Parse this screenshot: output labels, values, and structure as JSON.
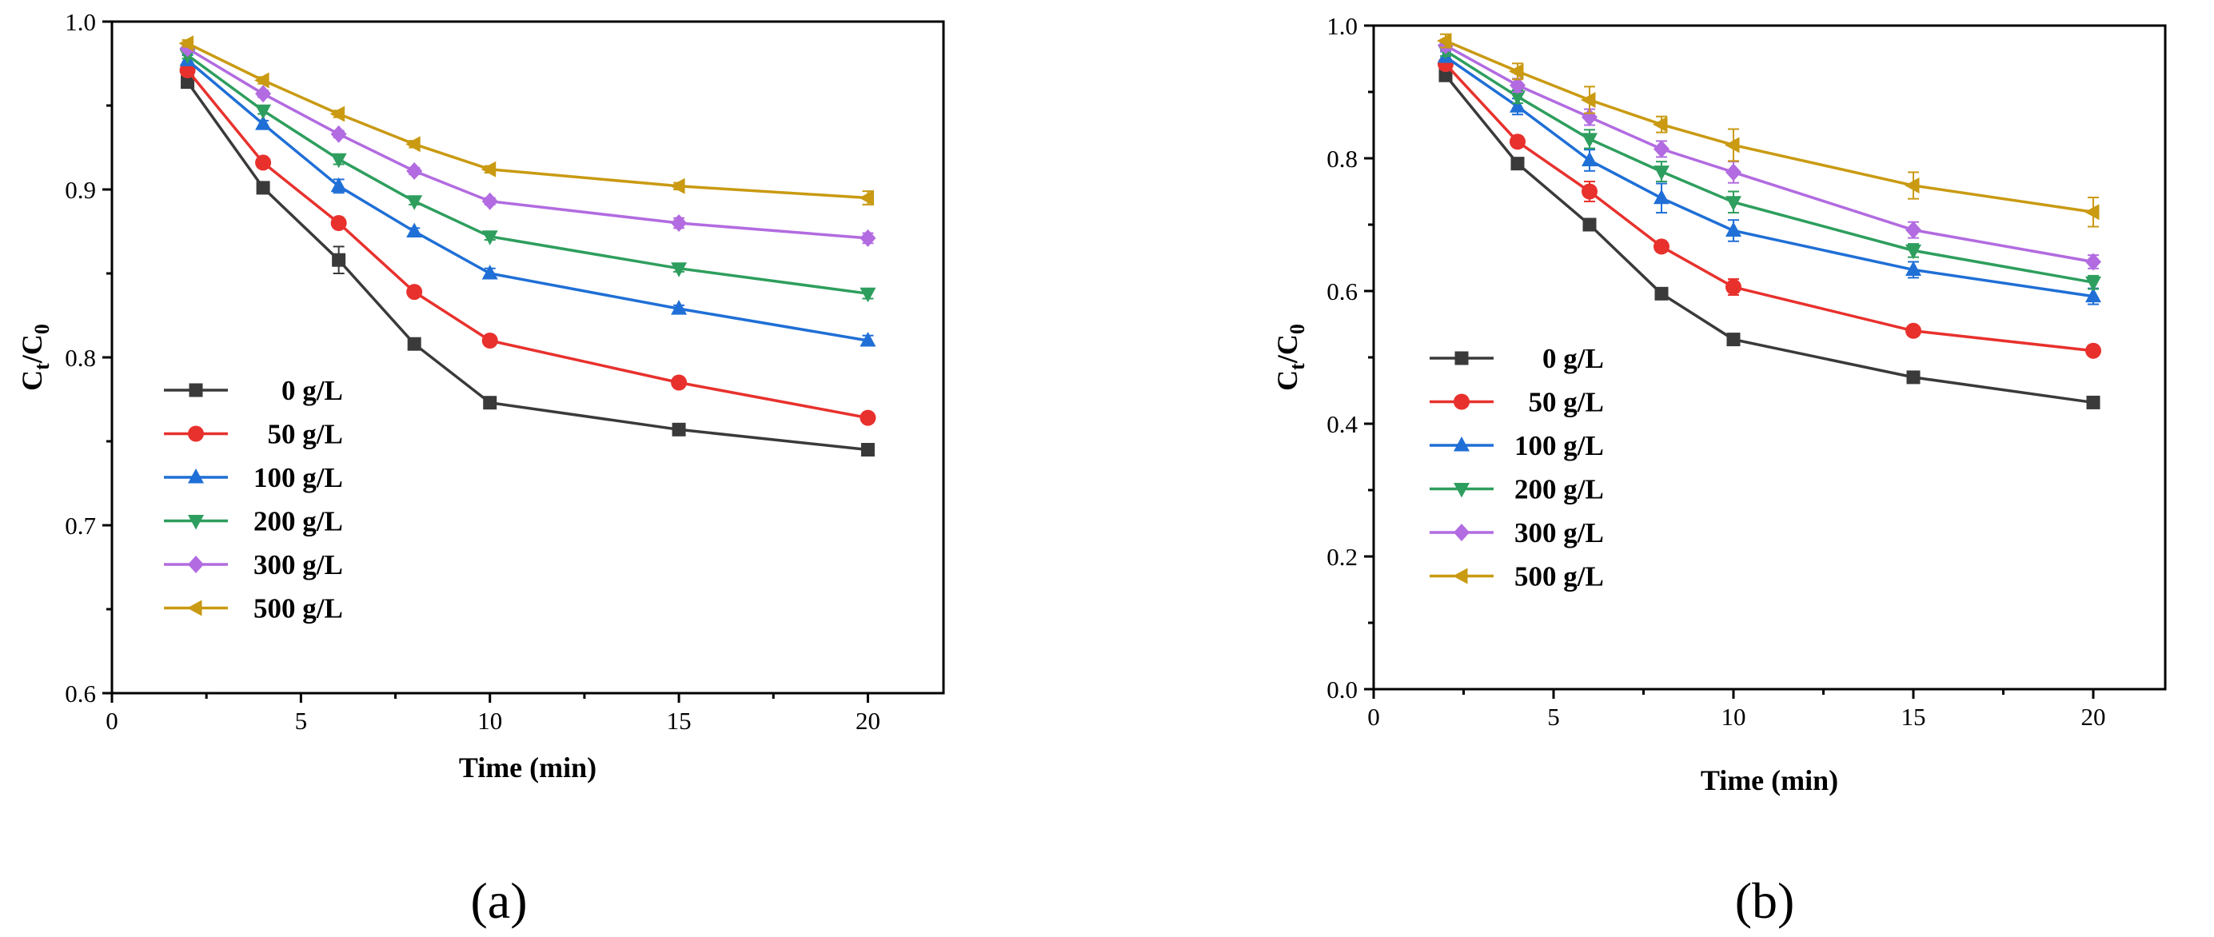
{
  "chart_data": [
    {
      "type": "line",
      "panel_label": "(a)",
      "xlabel": "Time (min)",
      "ylabel_main": "C",
      "ylabel_sub1": "t",
      "ylabel_slash": "/C",
      "ylabel_sub2": "0",
      "xlim": [
        0,
        22
      ],
      "ylim": [
        0.6,
        1.0
      ],
      "xticks": [
        0,
        5,
        10,
        15,
        20
      ],
      "xtick_labels": [
        "0",
        "5",
        "10",
        "15",
        "20"
      ],
      "yticks": [
        0.6,
        0.7,
        0.8,
        0.9,
        1.0
      ],
      "ytick_labels": [
        "0.6",
        "0.7",
        "0.8",
        "0.9",
        "1.0"
      ],
      "legend_position": "bottom-left",
      "x": [
        2,
        4,
        6,
        8,
        10,
        15,
        20
      ],
      "series": [
        {
          "name": "  0 g/L",
          "color": "#3a3a3a",
          "marker": "square",
          "values": [
            0.964,
            0.901,
            0.858,
            0.808,
            0.773,
            0.757,
            0.745
          ],
          "errors": [
            0.003,
            0.002,
            0.008,
            0.002,
            0.002,
            0.002,
            0.002
          ]
        },
        {
          "name": " 50 g/L",
          "color": "#e8312d",
          "marker": "circle",
          "values": [
            0.971,
            0.916,
            0.88,
            0.839,
            0.81,
            0.785,
            0.764
          ],
          "errors": [
            0.003,
            0.002,
            0.002,
            0.002,
            0.002,
            0.002,
            0.002
          ]
        },
        {
          "name": "100 g/L",
          "color": "#1f6fd6",
          "marker": "triangle-up",
          "values": [
            0.977,
            0.939,
            0.902,
            0.875,
            0.85,
            0.829,
            0.81
          ],
          "errors": [
            0.003,
            0.002,
            0.004,
            0.002,
            0.003,
            0.002,
            0.003
          ]
        },
        {
          "name": "200 g/L",
          "color": "#2e9e5e",
          "marker": "triangle-down",
          "values": [
            0.98,
            0.947,
            0.918,
            0.893,
            0.872,
            0.853,
            0.838
          ],
          "errors": [
            0.002,
            0.002,
            0.003,
            0.002,
            0.002,
            0.002,
            0.003
          ]
        },
        {
          "name": "300 g/L",
          "color": "#b26be0",
          "marker": "diamond",
          "values": [
            0.984,
            0.957,
            0.933,
            0.911,
            0.893,
            0.88,
            0.871
          ],
          "errors": [
            0.002,
            0.002,
            0.002,
            0.002,
            0.002,
            0.003,
            0.003
          ]
        },
        {
          "name": "500 g/L",
          "color": "#c99a12",
          "marker": "triangle-left",
          "values": [
            0.987,
            0.965,
            0.945,
            0.927,
            0.912,
            0.902,
            0.895
          ],
          "errors": [
            0.002,
            0.002,
            0.002,
            0.002,
            0.002,
            0.002,
            0.004
          ]
        }
      ]
    },
    {
      "type": "line",
      "panel_label": "(b)",
      "xlabel": "Time (min)",
      "ylabel_main": "C",
      "ylabel_sub1": "t",
      "ylabel_slash": "/C",
      "ylabel_sub2": "0",
      "xlim": [
        0,
        22
      ],
      "ylim": [
        0.0,
        1.0
      ],
      "xticks": [
        0,
        5,
        10,
        15,
        20
      ],
      "xtick_labels": [
        "0",
        "5",
        "10",
        "15",
        "20"
      ],
      "yticks": [
        0.0,
        0.2,
        0.4,
        0.6,
        0.8,
        1.0
      ],
      "ytick_labels": [
        "0.0",
        "0.2",
        "0.4",
        "0.6",
        "0.8",
        "1.0"
      ],
      "legend_position": "bottom-left",
      "x": [
        2,
        4,
        6,
        8,
        10,
        15,
        20
      ],
      "series": [
        {
          "name": "  0 g/L",
          "color": "#3a3a3a",
          "marker": "square",
          "values": [
            0.925,
            0.792,
            0.7,
            0.596,
            0.527,
            0.47,
            0.432
          ],
          "errors": [
            0.008,
            0.006,
            0.006,
            0.006,
            0.008,
            0.006,
            0.006
          ]
        },
        {
          "name": " 50 g/L",
          "color": "#e8312d",
          "marker": "circle",
          "values": [
            0.942,
            0.825,
            0.75,
            0.667,
            0.606,
            0.54,
            0.51
          ],
          "errors": [
            0.008,
            0.008,
            0.015,
            0.008,
            0.012,
            0.006,
            0.006
          ]
        },
        {
          "name": "100 g/L",
          "color": "#1f6fd6",
          "marker": "triangle-up",
          "values": [
            0.953,
            0.878,
            0.797,
            0.74,
            0.691,
            0.632,
            0.592
          ],
          "errors": [
            0.008,
            0.012,
            0.016,
            0.022,
            0.016,
            0.012,
            0.012
          ]
        },
        {
          "name": "200 g/L",
          "color": "#2e9e5e",
          "marker": "triangle-down",
          "values": [
            0.962,
            0.893,
            0.829,
            0.78,
            0.734,
            0.661,
            0.613
          ],
          "errors": [
            0.008,
            0.01,
            0.014,
            0.015,
            0.016,
            0.01,
            0.01
          ]
        },
        {
          "name": "300 g/L",
          "color": "#b26be0",
          "marker": "diamond",
          "values": [
            0.97,
            0.91,
            0.862,
            0.814,
            0.779,
            0.692,
            0.644
          ],
          "errors": [
            0.008,
            0.01,
            0.012,
            0.012,
            0.016,
            0.012,
            0.01
          ]
        },
        {
          "name": "500 g/L",
          "color": "#c99a12",
          "marker": "triangle-left",
          "values": [
            0.977,
            0.931,
            0.888,
            0.851,
            0.82,
            0.759,
            0.719
          ],
          "errors": [
            0.01,
            0.012,
            0.02,
            0.012,
            0.024,
            0.02,
            0.022
          ]
        }
      ]
    }
  ]
}
